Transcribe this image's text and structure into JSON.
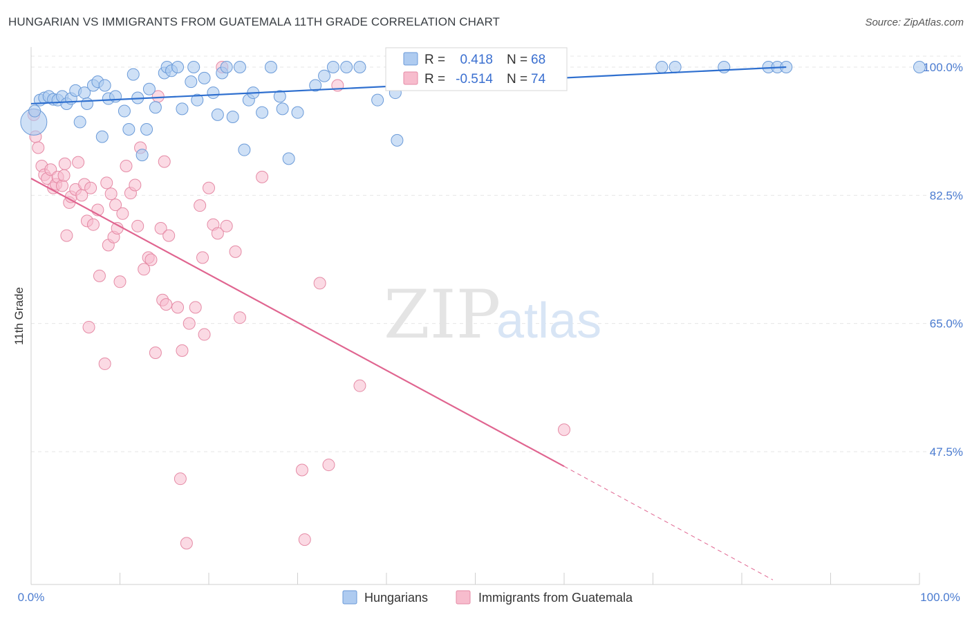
{
  "header": {
    "title": "HUNGARIAN VS IMMIGRANTS FROM GUATEMALA 11TH GRADE CORRELATION CHART",
    "source": "Source: ZipAtlas.com"
  },
  "watermark": {
    "zip": "ZIP",
    "atlas": "atlas"
  },
  "stats_box": {
    "rows": [
      {
        "label_r": "R =",
        "r": "0.418",
        "label_n": "N =",
        "n": "68",
        "color": "#aecbf0",
        "border": "#6a9ad8"
      },
      {
        "label_r": "R =",
        "r": "-0.514",
        "label_n": "N =",
        "n": "74",
        "color": "#f7bccd",
        "border": "#e58aa5"
      }
    ]
  },
  "legend": {
    "items": [
      {
        "label": "Hungarians",
        "color": "#aecbf0",
        "border": "#6a9ad8"
      },
      {
        "label": "Immigrants from Guatemala",
        "color": "#f7bccd",
        "border": "#e58aa5"
      }
    ]
  },
  "chart_data": {
    "type": "scatter",
    "title": "HUNGARIAN VS IMMIGRANTS FROM GUATEMALA 11TH GRADE CORRELATION CHART",
    "xlabel": "",
    "ylabel": "11th Grade",
    "xlim": [
      0,
      100
    ],
    "ylim": [
      30,
      102
    ],
    "x_tick_labels": [
      "0.0%",
      "100.0%"
    ],
    "y_ticks": [
      {
        "value": 100.0,
        "label": "100.0%"
      },
      {
        "value": 82.5,
        "label": "82.5%"
      },
      {
        "value": 65.0,
        "label": "65.0%"
      },
      {
        "value": 47.5,
        "label": "47.5%"
      }
    ],
    "colors": {
      "blue": "#6a9ad8",
      "blue_fill": "#aecbf0",
      "blue_line": "#2e6fcf",
      "pink": "#e58aa5",
      "pink_fill": "#f7bccd",
      "pink_line": "#e06590",
      "grid": "#e6e6e6"
    },
    "series": [
      {
        "name": "Hungarians",
        "r": 0.418,
        "n": 68,
        "trend": {
          "x0": 0,
          "y0": 95.0,
          "x1": 85,
          "y1": 100.0
        },
        "points": [
          [
            0.3,
            92.5
          ],
          [
            0.4,
            94
          ],
          [
            1,
            95.5
          ],
          [
            1.5,
            95.8
          ],
          [
            2,
            96
          ],
          [
            2.5,
            95.6
          ],
          [
            3,
            95.5
          ],
          [
            3.5,
            96
          ],
          [
            4,
            95
          ],
          [
            4.5,
            95.7
          ],
          [
            5,
            96.8
          ],
          [
            5.5,
            92.5
          ],
          [
            6,
            96.5
          ],
          [
            6.3,
            95
          ],
          [
            7,
            97.5
          ],
          [
            7.5,
            98
          ],
          [
            8,
            90.5
          ],
          [
            8.3,
            97.5
          ],
          [
            8.7,
            95.7
          ],
          [
            9.5,
            96
          ],
          [
            10.5,
            94
          ],
          [
            11,
            91.5
          ],
          [
            11.5,
            99
          ],
          [
            12,
            95.8
          ],
          [
            12.5,
            88
          ],
          [
            13,
            91.5
          ],
          [
            13.3,
            97
          ],
          [
            14,
            94.5
          ],
          [
            15,
            99.2
          ],
          [
            15.3,
            100
          ],
          [
            15.8,
            99.5
          ],
          [
            16.5,
            100
          ],
          [
            17,
            94.3
          ],
          [
            18,
            98
          ],
          [
            18.3,
            100
          ],
          [
            18.7,
            95.5
          ],
          [
            19.5,
            98.5
          ],
          [
            20.5,
            96.5
          ],
          [
            21,
            93.5
          ],
          [
            21.5,
            99.2
          ],
          [
            22,
            100
          ],
          [
            22.7,
            93.2
          ],
          [
            23.5,
            100
          ],
          [
            24,
            88.7
          ],
          [
            24.5,
            95.5
          ],
          [
            25,
            96.5
          ],
          [
            26,
            93.8
          ],
          [
            27,
            100
          ],
          [
            28,
            96
          ],
          [
            28.3,
            94.3
          ],
          [
            29,
            87.5
          ],
          [
            30,
            93.8
          ],
          [
            32,
            97.5
          ],
          [
            33,
            98.8
          ],
          [
            34,
            100
          ],
          [
            35.5,
            100
          ],
          [
            37,
            100
          ],
          [
            39,
            95.5
          ],
          [
            41,
            96.5
          ],
          [
            41.2,
            90
          ],
          [
            53,
            100
          ],
          [
            71,
            100
          ],
          [
            72.5,
            100
          ],
          [
            78,
            100
          ],
          [
            83,
            100
          ],
          [
            84,
            100
          ],
          [
            85,
            100
          ],
          [
            100,
            100
          ]
        ]
      },
      {
        "name": "Immigrants from Guatemala",
        "r": -0.514,
        "n": 74,
        "trend": {
          "x0": 0,
          "y0": 84.8,
          "x1": 60,
          "y1": 45.5,
          "x_dashed_end": 83.5,
          "y_dashed_end": 30.0
        },
        "points": [
          [
            0.3,
            93.5
          ],
          [
            0.5,
            90.5
          ],
          [
            0.8,
            89
          ],
          [
            1.2,
            86.5
          ],
          [
            1.5,
            85.3
          ],
          [
            1.8,
            84.8
          ],
          [
            2.2,
            86
          ],
          [
            2.5,
            83.5
          ],
          [
            2.8,
            84
          ],
          [
            3,
            85
          ],
          [
            3.5,
            83.8
          ],
          [
            3.7,
            85.2
          ],
          [
            3.8,
            86.8
          ],
          [
            4,
            77
          ],
          [
            4.3,
            81.5
          ],
          [
            4.5,
            82.3
          ],
          [
            5,
            83.3
          ],
          [
            5.3,
            87
          ],
          [
            5.7,
            82.5
          ],
          [
            6,
            84
          ],
          [
            6.3,
            79
          ],
          [
            6.5,
            64.5
          ],
          [
            6.7,
            83.5
          ],
          [
            7,
            78.5
          ],
          [
            7.5,
            80.5
          ],
          [
            7.7,
            71.5
          ],
          [
            8.3,
            59.5
          ],
          [
            8.5,
            84.2
          ],
          [
            8.7,
            75.7
          ],
          [
            9,
            82.7
          ],
          [
            9.3,
            76.8
          ],
          [
            9.5,
            81.2
          ],
          [
            9.7,
            78
          ],
          [
            10,
            70.7
          ],
          [
            10.3,
            80
          ],
          [
            10.7,
            86.5
          ],
          [
            11.2,
            82.8
          ],
          [
            11.7,
            83.9
          ],
          [
            12,
            78.3
          ],
          [
            12.3,
            89
          ],
          [
            12.7,
            72.4
          ],
          [
            13.2,
            74
          ],
          [
            13.5,
            73.7
          ],
          [
            14,
            61
          ],
          [
            14.3,
            96
          ],
          [
            14.6,
            78
          ],
          [
            14.8,
            68.2
          ],
          [
            15,
            87.1
          ],
          [
            15.2,
            67.6
          ],
          [
            15.5,
            77
          ],
          [
            16.5,
            67.2
          ],
          [
            16.8,
            43.8
          ],
          [
            17,
            61.3
          ],
          [
            17.5,
            35
          ],
          [
            17.8,
            65
          ],
          [
            18.5,
            67.2
          ],
          [
            19,
            81.1
          ],
          [
            19.3,
            74
          ],
          [
            19.5,
            63.5
          ],
          [
            20,
            83.5
          ],
          [
            20.5,
            78.5
          ],
          [
            21,
            77.3
          ],
          [
            21.5,
            100
          ],
          [
            22,
            78.3
          ],
          [
            23,
            74.8
          ],
          [
            23.5,
            65.8
          ],
          [
            26,
            85
          ],
          [
            30.5,
            45
          ],
          [
            30.8,
            35.5
          ],
          [
            32.5,
            70.5
          ],
          [
            33.5,
            45.7
          ],
          [
            34.5,
            97.5
          ],
          [
            37,
            56.5
          ],
          [
            60,
            50.5
          ]
        ]
      }
    ]
  }
}
